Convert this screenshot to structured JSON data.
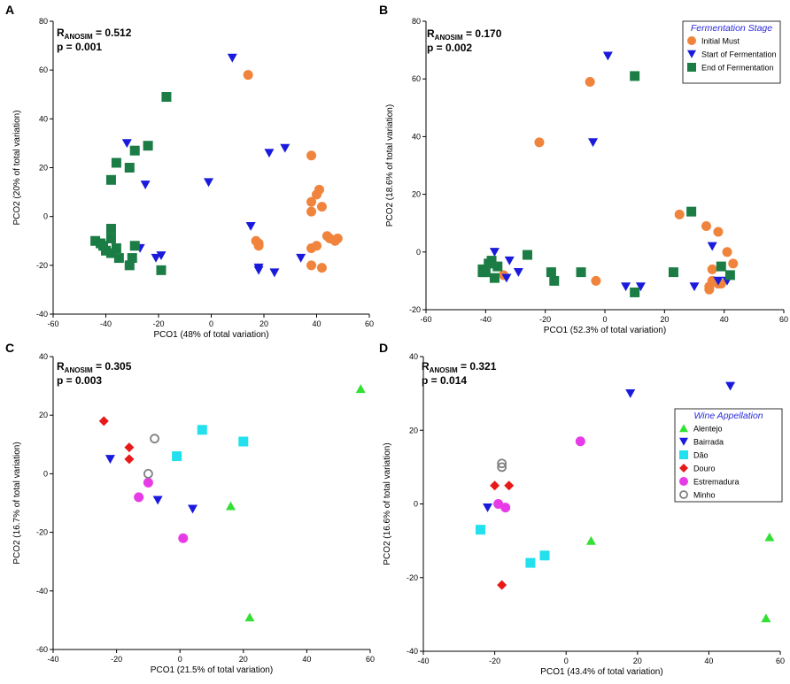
{
  "colors": {
    "initial_must": "#f0843c",
    "start_ferm": "#1a1adc",
    "end_ferm": "#1b7d45",
    "alentejo": "#33e033",
    "bairrada": "#1a1adc",
    "dao": "#22e0ee",
    "douro": "#e81919",
    "estremadura": "#e83be8",
    "minho": "#808080",
    "legend_title": "#2a2adc"
  },
  "chart_data": [
    {
      "id": "A",
      "type": "scatter",
      "panel_label": "A",
      "stat_r": "R",
      "stat_sub": "ANOSIM",
      "stat_val": " = 0.512",
      "stat_p": "p = 0.001",
      "xlabel": "PCO1 (48% of total variation)",
      "ylabel": "PCO2 (20% of total variation)",
      "xlim": [
        -60,
        60
      ],
      "ylim": [
        -40,
        80
      ],
      "xticks": [
        -60,
        -40,
        -20,
        0,
        20,
        40,
        60
      ],
      "yticks": [
        -40,
        -20,
        0,
        20,
        40,
        60,
        80
      ],
      "series": [
        {
          "name": "Initial Must",
          "marker": "circle",
          "color_key": "initial_must",
          "points": [
            [
              14,
              58
            ],
            [
              38,
              25
            ],
            [
              41,
              11
            ],
            [
              40,
              9
            ],
            [
              38,
              6
            ],
            [
              42,
              4
            ],
            [
              38,
              2
            ],
            [
              17,
              -10
            ],
            [
              18,
              -11
            ],
            [
              44,
              -8
            ],
            [
              45,
              -9
            ],
            [
              47,
              -10
            ],
            [
              48,
              -9
            ],
            [
              18,
              -12
            ],
            [
              40,
              -12
            ],
            [
              38,
              -13
            ],
            [
              38,
              -20
            ],
            [
              42,
              -21
            ]
          ]
        },
        {
          "name": "Start of Fermentation",
          "marker": "triangle-down",
          "color_key": "start_ferm",
          "points": [
            [
              8,
              65
            ],
            [
              -32,
              30
            ],
            [
              22,
              26
            ],
            [
              28,
              28
            ],
            [
              -1,
              14
            ],
            [
              -25,
              13
            ],
            [
              15,
              -4
            ],
            [
              -27,
              -13
            ],
            [
              -21,
              -17
            ],
            [
              -19,
              -16
            ],
            [
              18,
              -21
            ],
            [
              18,
              -22
            ],
            [
              24,
              -23
            ],
            [
              34,
              -17
            ]
          ]
        },
        {
          "name": "End of Fermentation",
          "marker": "square",
          "color_key": "end_ferm",
          "points": [
            [
              -17,
              49
            ],
            [
              -36,
              22
            ],
            [
              -24,
              29
            ],
            [
              -31,
              20
            ],
            [
              -29,
              27
            ],
            [
              -38,
              15
            ],
            [
              -38,
              -5
            ],
            [
              -44,
              -10
            ],
            [
              -42,
              -11
            ],
            [
              -38,
              -9
            ],
            [
              -40,
              -14
            ],
            [
              -36,
              -13
            ],
            [
              -38,
              -15
            ],
            [
              -41,
              -12
            ],
            [
              -29,
              -12
            ],
            [
              -30,
              -17
            ],
            [
              -35,
              -17
            ],
            [
              -31,
              -20
            ],
            [
              -19,
              -22
            ]
          ]
        }
      ]
    },
    {
      "id": "B",
      "type": "scatter",
      "panel_label": "B",
      "stat_r": "R",
      "stat_sub": "ANOSIM",
      "stat_val": " = 0.170",
      "stat_p": "p = 0.002",
      "xlabel": "PCO1 (52.3% of total variation)",
      "ylabel": "PCO2 (18.6% of total variation)",
      "xlim": [
        -60,
        60
      ],
      "ylim": [
        -20,
        80
      ],
      "xticks": [
        -60,
        -40,
        -20,
        0,
        20,
        40,
        60
      ],
      "yticks": [
        -20,
        0,
        20,
        40,
        60,
        80
      ],
      "legend": {
        "title": "Fermentation Stage",
        "position": "top-right",
        "items": [
          {
            "label": "Initial Must",
            "marker": "circle",
            "color_key": "initial_must"
          },
          {
            "label": "Start of Fermentation",
            "marker": "triangle-down",
            "color_key": "start_ferm"
          },
          {
            "label": "End of Fermentation",
            "marker": "square",
            "color_key": "end_ferm"
          }
        ]
      },
      "series": [
        {
          "name": "Initial Must",
          "marker": "circle",
          "color_key": "initial_must",
          "points": [
            [
              -5,
              59
            ],
            [
              -22,
              38
            ],
            [
              25,
              13
            ],
            [
              34,
              9
            ],
            [
              38,
              7
            ],
            [
              41,
              0
            ],
            [
              43,
              -4
            ],
            [
              36,
              -6
            ],
            [
              -3,
              -10
            ],
            [
              36,
              -10
            ],
            [
              38,
              -11
            ],
            [
              39,
              -11
            ],
            [
              35,
              -12
            ],
            [
              35,
              -13
            ],
            [
              -36,
              -5
            ],
            [
              -34,
              -8
            ]
          ]
        },
        {
          "name": "Start of Fermentation",
          "marker": "triangle-down",
          "color_key": "start_ferm",
          "points": [
            [
              1,
              68
            ],
            [
              -4,
              38
            ],
            [
              -37,
              0
            ],
            [
              -32,
              -3
            ],
            [
              -36,
              -5
            ],
            [
              -29,
              -7
            ],
            [
              -33,
              -9
            ],
            [
              7,
              -12
            ],
            [
              12,
              -12
            ],
            [
              30,
              -12
            ],
            [
              36,
              2
            ],
            [
              38,
              -10
            ],
            [
              41,
              -10
            ]
          ]
        },
        {
          "name": "End of Fermentation",
          "marker": "square",
          "color_key": "end_ferm",
          "points": [
            [
              10,
              61
            ],
            [
              29,
              14
            ],
            [
              -26,
              -1
            ],
            [
              -38,
              -3
            ],
            [
              -39,
              -4
            ],
            [
              -41,
              -6
            ],
            [
              -41,
              -7
            ],
            [
              -40,
              -7
            ],
            [
              -36,
              -5
            ],
            [
              -37,
              -9
            ],
            [
              -18,
              -7
            ],
            [
              -17,
              -10
            ],
            [
              -8,
              -7
            ],
            [
              10,
              -14
            ],
            [
              23,
              -7
            ],
            [
              39,
              -5
            ],
            [
              42,
              -8
            ]
          ]
        }
      ]
    },
    {
      "id": "C",
      "type": "scatter",
      "panel_label": "C",
      "stat_r": "R",
      "stat_sub": "ANOSIM",
      "stat_val": " = 0.305",
      "stat_p": "p = 0.003",
      "xlabel": "PCO1 (21.5% of total variation)",
      "ylabel": "PCO2 (16.7% of total variation)",
      "xlim": [
        -40,
        60
      ],
      "ylim": [
        -60,
        40
      ],
      "xticks": [
        -40,
        -20,
        0,
        20,
        40,
        60
      ],
      "yticks": [
        -60,
        -40,
        -20,
        0,
        20,
        40
      ],
      "series": [
        {
          "name": "Alentejo",
          "marker": "triangle-up",
          "color_key": "alentejo",
          "points": [
            [
              57,
              29
            ],
            [
              16,
              -11
            ],
            [
              22,
              -49
            ]
          ]
        },
        {
          "name": "Bairrada",
          "marker": "triangle-down",
          "color_key": "bairrada",
          "points": [
            [
              -22,
              5
            ],
            [
              -7,
              -9
            ],
            [
              4,
              -12
            ]
          ]
        },
        {
          "name": "Dão",
          "marker": "square",
          "color_key": "dao",
          "points": [
            [
              7,
              15
            ],
            [
              20,
              11
            ],
            [
              -1,
              6
            ]
          ]
        },
        {
          "name": "Douro",
          "marker": "diamond",
          "color_key": "douro",
          "points": [
            [
              -24,
              18
            ],
            [
              -16,
              9
            ],
            [
              -16,
              5
            ]
          ]
        },
        {
          "name": "Estremadura",
          "marker": "circle",
          "color_key": "estremadura",
          "points": [
            [
              -13,
              -8
            ],
            [
              -10,
              -3
            ],
            [
              1,
              -22
            ]
          ]
        },
        {
          "name": "Minho",
          "marker": "open-circle",
          "color_key": "minho",
          "points": [
            [
              -8,
              12
            ],
            [
              -10,
              0
            ]
          ]
        }
      ]
    },
    {
      "id": "D",
      "type": "scatter",
      "panel_label": "D",
      "stat_r": "R",
      "stat_sub": "ANOSIM",
      "stat_val": " = 0.321",
      "stat_p": "p = 0.014",
      "xlabel": "PCO1 (43.4% of total variation)",
      "ylabel": "PCO2 (16.6% of total variation)",
      "xlim": [
        -40,
        60
      ],
      "ylim": [
        -40,
        40
      ],
      "xticks": [
        -40,
        -20,
        0,
        20,
        40,
        60
      ],
      "yticks": [
        -40,
        -20,
        0,
        20,
        40
      ],
      "legend": {
        "title": "Wine Appellation",
        "position": "right",
        "items": [
          {
            "label": "Alentejo",
            "marker": "triangle-up",
            "color_key": "alentejo"
          },
          {
            "label": "Bairrada",
            "marker": "triangle-down",
            "color_key": "bairrada"
          },
          {
            "label": "Dão",
            "marker": "square",
            "color_key": "dao"
          },
          {
            "label": "Douro",
            "marker": "diamond",
            "color_key": "douro"
          },
          {
            "label": "Estremadura",
            "marker": "circle",
            "color_key": "estremadura"
          },
          {
            "label": "Minho",
            "marker": "open-circle",
            "color_key": "minho"
          }
        ]
      },
      "series": [
        {
          "name": "Alentejo",
          "marker": "triangle-up",
          "color_key": "alentejo",
          "points": [
            [
              7,
              -10
            ],
            [
              57,
              -9
            ],
            [
              56,
              -31
            ]
          ]
        },
        {
          "name": "Bairrada",
          "marker": "triangle-down",
          "color_key": "bairrada",
          "points": [
            [
              18,
              30
            ],
            [
              46,
              32
            ],
            [
              -22,
              -1
            ]
          ]
        },
        {
          "name": "Dão",
          "marker": "square",
          "color_key": "dao",
          "points": [
            [
              -24,
              -7
            ],
            [
              -10,
              -16
            ],
            [
              -6,
              -14
            ]
          ]
        },
        {
          "name": "Douro",
          "marker": "diamond",
          "color_key": "douro",
          "points": [
            [
              -20,
              5
            ],
            [
              -16,
              5
            ],
            [
              -18,
              -22
            ]
          ]
        },
        {
          "name": "Estremadura",
          "marker": "circle",
          "color_key": "estremadura",
          "points": [
            [
              4,
              17
            ],
            [
              -19,
              0
            ],
            [
              -17,
              -1
            ]
          ]
        },
        {
          "name": "Minho",
          "marker": "open-circle",
          "color_key": "minho",
          "points": [
            [
              -18,
              11
            ],
            [
              -18,
              10
            ]
          ]
        }
      ]
    }
  ]
}
